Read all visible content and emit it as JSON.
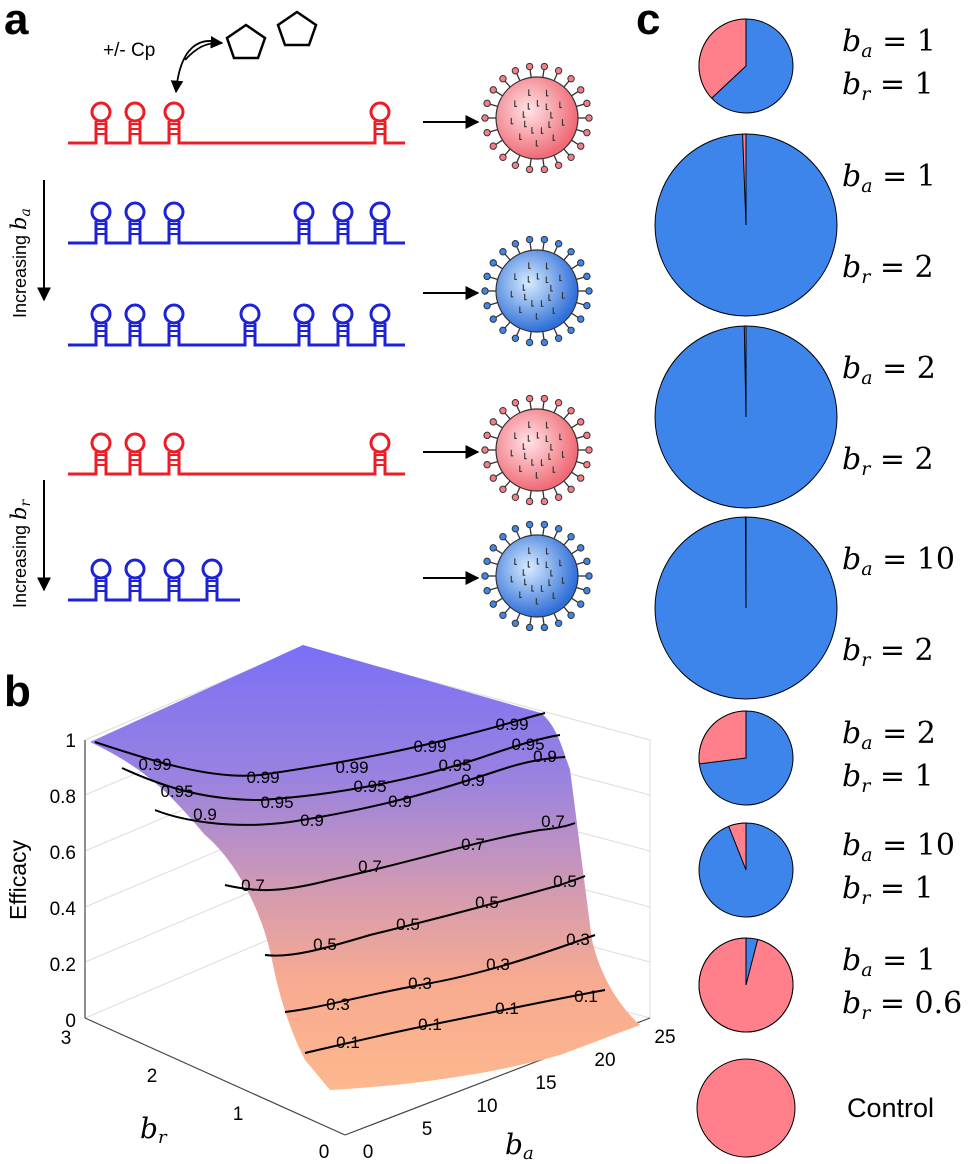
{
  "panels": {
    "a": "a",
    "b": "b",
    "c": "c"
  },
  "panel_a": {
    "cp_label": "+/- Cp",
    "increasing_ba_label": "Increasing ",
    "ba_symbol": "b",
    "ba_sub": "a",
    "increasing_br_label": "Increasing ",
    "br_symbol": "b",
    "br_sub": "r",
    "colors": {
      "red": "#ee1c25",
      "blue": "#1c22d6",
      "virus_red": "#f47e86",
      "virus_blue": "#3e86e8"
    }
  },
  "panel_b": {
    "zlabel": "Efficacy",
    "z_ticks": [
      "0",
      "0.2",
      "0.4",
      "0.6",
      "0.8",
      "1"
    ],
    "br_ticks": [
      "0",
      "1",
      "2",
      "3"
    ],
    "ba_ticks": [
      "0",
      "5",
      "10",
      "15",
      "20",
      "25"
    ],
    "br_axis_symbol": "b",
    "br_axis_sub": "r",
    "ba_axis_symbol": "b",
    "ba_axis_sub": "a",
    "contour_labels": [
      "0.99",
      "0.99",
      "0.99",
      "0.99",
      "0.99",
      "0.95",
      "0.95",
      "0.95",
      "0.95",
      "0.95",
      "0.9",
      "0.9",
      "0.9",
      "0.9",
      "0.9",
      "0.7",
      "0.7",
      "0.7",
      "0.7",
      "0.5",
      "0.5",
      "0.5",
      "0.5",
      "0.3",
      "0.3",
      "0.3",
      "0.3",
      "0.1",
      "0.1",
      "0.1",
      "0.1"
    ]
  },
  "panel_c": {
    "colors": {
      "blue": "#3d85ea",
      "red": "#ff7f8a"
    },
    "pies": [
      {
        "ba": "1",
        "br": "1",
        "red_fraction": 0.37
      },
      {
        "ba": "1",
        "br": "2",
        "red_fraction": 0.006
      },
      {
        "ba": "2",
        "br": "2",
        "red_fraction": 0.003
      },
      {
        "ba": "10",
        "br": "2",
        "red_fraction": 0.001
      },
      {
        "ba": "2",
        "br": "1",
        "red_fraction": 0.27
      },
      {
        "ba": "10",
        "br": "1",
        "red_fraction": 0.06
      },
      {
        "ba": "1",
        "br": "0.6",
        "red_fraction": 0.96
      },
      {
        "label": "Control",
        "red_fraction": 1.0
      }
    ]
  }
}
